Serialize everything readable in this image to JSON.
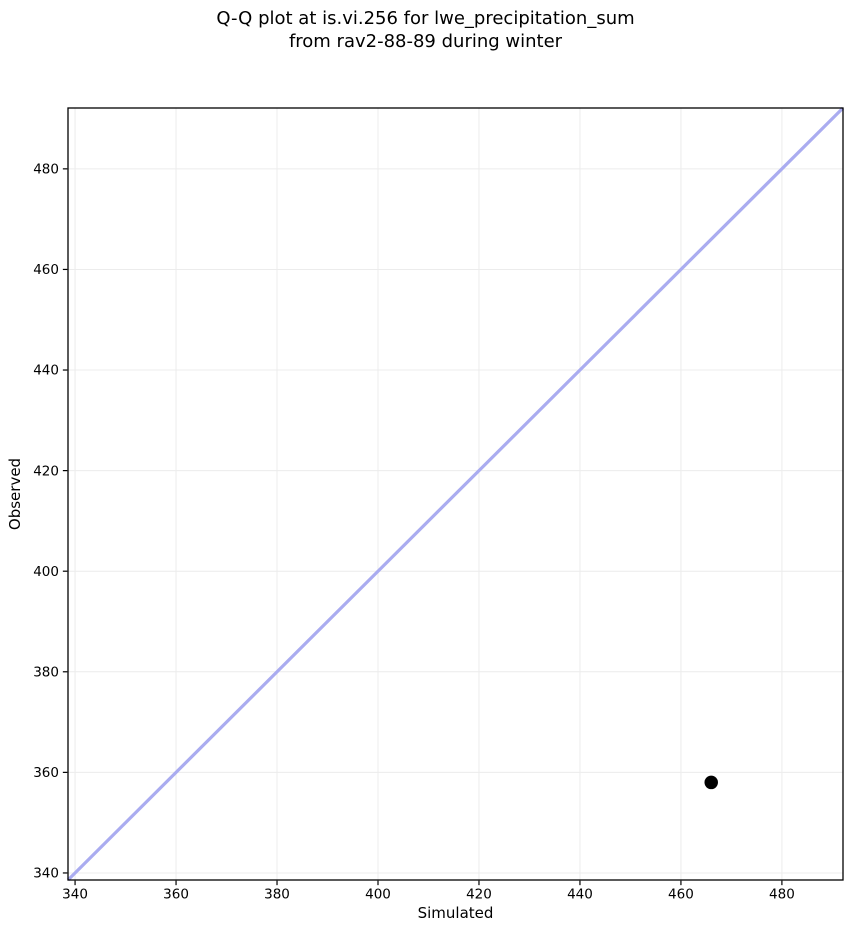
{
  "figure": {
    "title_line1": "Q-Q plot at is.vi.256 for lwe_precipitation_sum",
    "title_line2": "from rav2-88-89 during winter"
  },
  "chart_data": {
    "type": "scatter",
    "title": "Q-Q plot at is.vi.256 for lwe_precipitation_sum\nfrom rav2-88-89 during winter",
    "xlabel": "Simulated",
    "ylabel": "Observed",
    "xlim": [
      338.6,
      492.1
    ],
    "ylim": [
      338.6,
      492.1
    ],
    "xticks": [
      340,
      360,
      380,
      400,
      420,
      440,
      460,
      480
    ],
    "yticks": [
      340,
      360,
      380,
      400,
      420,
      440,
      460,
      480
    ],
    "grid": true,
    "grid_color": "#ececec",
    "background": "#ffffff",
    "spine_color": "#000000",
    "series": [
      {
        "name": "identity-line",
        "kind": "line",
        "color": "#aaacf0",
        "width": 3.2,
        "points": [
          {
            "x": 338.6,
            "y": 338.6
          },
          {
            "x": 492.1,
            "y": 492.1
          }
        ]
      },
      {
        "name": "qq-point",
        "kind": "scatter",
        "color": "#000000",
        "marker_diameter": 13.5,
        "points": [
          {
            "x": 466,
            "y": 358
          }
        ]
      }
    ]
  }
}
